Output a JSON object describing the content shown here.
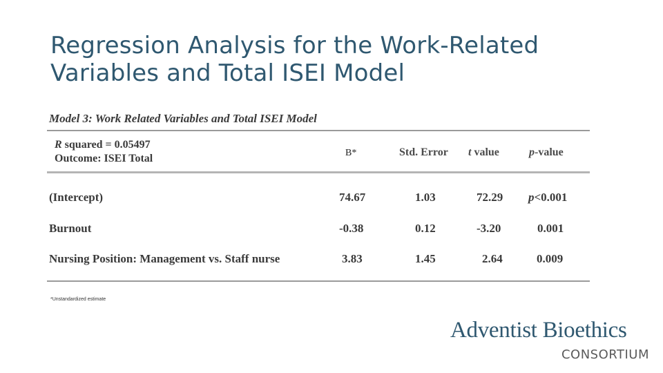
{
  "title": "Regression Analysis for the Work-Related Variables and Total ISEI Model",
  "table": {
    "caption": "Model 3: Work Related Variables and Total ISEI Model",
    "model_stat_label": "R",
    "model_stat_text": " squared = 0.05497",
    "outcome": "Outcome: ISEI Total",
    "headers": {
      "b": "B*",
      "std_error": "Std. Error",
      "t_value_letter": "t",
      "t_value_text": " value",
      "p_value_letter": "p",
      "p_value_text": "-value"
    },
    "rows": [
      {
        "label": "(Intercept)",
        "b": "74.67",
        "std_error": "1.03",
        "t_value": "72.29",
        "p_prefix": "p",
        "p_value": "<0.001"
      },
      {
        "label": "Burnout",
        "b": "-0.38",
        "std_error": "0.12",
        "t_value": "-3.20",
        "p_prefix": "",
        "p_value": "0.001"
      },
      {
        "label": "Nursing Position: Management vs. Staff nurse",
        "b": "3.83",
        "std_error": "1.45",
        "t_value": "2.64",
        "p_prefix": "",
        "p_value": "0.009"
      }
    ]
  },
  "footnote": "*Unstandardized estimate",
  "logo": {
    "main": "Adventist Bioethics",
    "sub": "CONSORTIUM"
  }
}
